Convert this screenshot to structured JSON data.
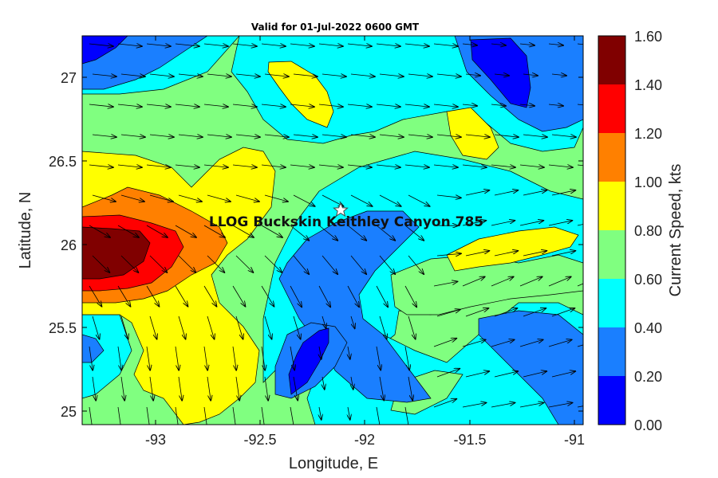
{
  "map": {
    "title": "Valid for 01-Jul-2022 0600 GMT",
    "xlabel": "Longitude, E",
    "ylabel": "Latitude, N",
    "x_range": [
      -93.45,
      -90.95
    ],
    "y_range": [
      24.9,
      27.25
    ],
    "x_ticks": [
      "-93",
      "-92.5",
      "-92",
      "-91.5",
      "-91"
    ],
    "y_ticks": [
      "25",
      "25.5",
      "26",
      "26.5",
      "27"
    ],
    "site": {
      "label": "LLOG Buckskin Keithley Canyon 785",
      "lon": -92.12,
      "lat": 26.2
    }
  },
  "colorbar": {
    "label": "Current Speed, kts",
    "tick_labels": [
      "0.00",
      "0.20",
      "0.40",
      "0.60",
      "0.80",
      "1.00",
      "1.20",
      "1.40",
      "1.60"
    ],
    "colors": [
      "#0000ff",
      "#1a7fff",
      "#00ffff",
      "#80ff80",
      "#ffff00",
      "#ff8000",
      "#ff0000",
      "#800000"
    ]
  }
}
